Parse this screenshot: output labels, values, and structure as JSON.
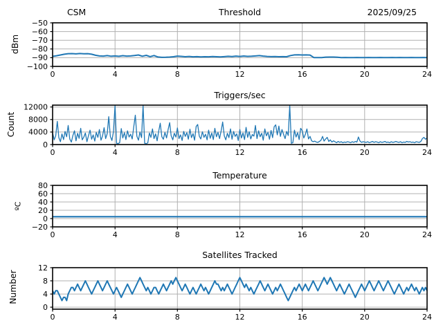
{
  "style": {
    "background": "#ffffff",
    "line_color": "#1f77b4",
    "grid_color": "#b0b0b0",
    "spine_color": "#000000"
  },
  "chart_data": [
    {
      "type": "line",
      "title": "Threshold",
      "title_left": "CSM",
      "title_right": "2025/09/25",
      "ylabel": "dBm",
      "xlim": [
        0,
        24
      ],
      "ylim": [
        -100,
        -50
      ],
      "xticks": [
        0,
        4,
        8,
        12,
        16,
        20,
        24
      ],
      "yticks": [
        -100,
        -90,
        -80,
        -70,
        -60,
        -50
      ],
      "grid": true,
      "x_start": 0,
      "x_step": 0.25,
      "values": [
        -88.5,
        -87.8,
        -86.9,
        -86.0,
        -85.4,
        -85.3,
        -85.6,
        -85.2,
        -85.5,
        -85.4,
        -86.0,
        -87.2,
        -88.0,
        -88.2,
        -87.6,
        -88.3,
        -88.0,
        -88.4,
        -87.7,
        -88.2,
        -88.0,
        -87.5,
        -86.9,
        -88.3,
        -87.3,
        -88.8,
        -87.5,
        -89.2,
        -89.6,
        -89.5,
        -89.3,
        -88.9,
        -88.2,
        -88.5,
        -88.9,
        -88.6,
        -89.0,
        -88.8,
        -89.1,
        -88.9,
        -89.0,
        -88.7,
        -88.9,
        -89.1,
        -88.8,
        -88.4,
        -88.7,
        -88.2,
        -88.6,
        -88.1,
        -88.5,
        -88.3,
        -88.0,
        -87.6,
        -88.2,
        -88.6,
        -88.8,
        -88.7,
        -88.9,
        -88.8,
        -88.9,
        -87.5,
        -86.8,
        -86.7,
        -86.9,
        -86.8,
        -87.0,
        -89.9,
        -89.9,
        -89.9,
        -89.4,
        -89.3,
        -89.3,
        -89.5,
        -89.9,
        -89.8,
        -89.9,
        -89.9,
        -89.8,
        -89.9,
        -89.9,
        -89.8,
        -89.9,
        -89.9,
        -89.8,
        -89.9,
        -89.9,
        -89.8,
        -89.9,
        -89.8,
        -89.9,
        -89.9,
        -89.8,
        -89.9,
        -89.9,
        -89.8,
        -89.9
      ]
    },
    {
      "type": "line",
      "title": "Triggers/sec",
      "ylabel": "Count",
      "xlim": [
        0,
        24
      ],
      "ylim": [
        0,
        12600
      ],
      "xticks": [
        0,
        4,
        8,
        12,
        16,
        20,
        24
      ],
      "yticks": [
        0,
        4000,
        8000,
        12000
      ],
      "grid": true,
      "x_start": 0,
      "x_step": 0.1,
      "values": [
        3800,
        1500,
        2800,
        7400,
        2200,
        900,
        3400,
        1600,
        4200,
        2500,
        6100,
        1800,
        800,
        2900,
        4400,
        1200,
        3600,
        2000,
        5200,
        1500,
        2400,
        3700,
        900,
        2800,
        4600,
        1700,
        3100,
        1100,
        3900,
        2300,
        4800,
        1400,
        2700,
        5400,
        1900,
        3500,
        8900,
        2600,
        1300,
        4100,
        12500,
        400,
        300,
        600,
        5100,
        2100,
        3800,
        1600,
        4400,
        2400,
        3300,
        1800,
        5600,
        9400,
        2700,
        1400,
        4000,
        2200,
        12500,
        400,
        300,
        500,
        3700,
        2300,
        5000,
        1900,
        3400,
        1200,
        4300,
        6800,
        2500,
        1700,
        3900,
        2100,
        4700,
        7000,
        2800,
        1500,
        3600,
        2400,
        5300,
        1900,
        3100,
        1300,
        4200,
        2600,
        3800,
        1700,
        4900,
        2200,
        3500,
        1400,
        5800,
        6400,
        2700,
        1800,
        4100,
        2300,
        3300,
        1500,
        4600,
        2000,
        3700,
        1600,
        5200,
        2500,
        3900,
        1900,
        4400,
        7200,
        2800,
        1500,
        3600,
        2200,
        5000,
        1700,
        4200,
        2600,
        3400,
        1300,
        4800,
        2100,
        3700,
        1600,
        5500,
        2300,
        4100,
        1800,
        3200,
        2700,
        6100,
        1900,
        4400,
        2500,
        3600,
        1400,
        5000,
        2800,
        3900,
        1700,
        4500,
        2200,
        5700,
        6300,
        3100,
        5900,
        2600,
        4800,
        3300,
        1900,
        4200,
        2900,
        12500,
        400,
        600,
        4600,
        2400,
        3800,
        1600,
        5200,
        4400,
        2100,
        3300,
        5000,
        1800,
        2600,
        1200,
        900,
        1100,
        800,
        700,
        1000,
        1400,
        2600,
        1100,
        1800,
        2300,
        1000,
        1500,
        800,
        1200,
        900,
        600,
        1000,
        700,
        900,
        600,
        800,
        700,
        900,
        800,
        600,
        900,
        700,
        1000,
        800,
        2400,
        1100,
        700,
        900,
        800,
        700,
        900,
        600,
        800,
        1000,
        700,
        900,
        800,
        600,
        900,
        700,
        800,
        1000,
        700,
        800,
        600,
        900,
        700,
        800,
        1000,
        800,
        700,
        900,
        600,
        800,
        700,
        1000,
        800,
        900,
        700,
        800,
        600,
        900,
        800,
        700,
        1000,
        1900,
        2300,
        1700,
        2100
      ]
    },
    {
      "type": "line",
      "title": "Temperature",
      "ylabel": "ºC",
      "xlim": [
        0,
        24
      ],
      "ylim": [
        -20,
        80
      ],
      "xticks": [
        0,
        4,
        8,
        12,
        16,
        20,
        24
      ],
      "yticks": [
        -20,
        0,
        20,
        40,
        60,
        80
      ],
      "grid": true,
      "x_start": 0,
      "x_step": 24,
      "values": [
        4.5,
        4.5
      ]
    },
    {
      "type": "line",
      "title": "Satellites Tracked",
      "ylabel": "Number",
      "xlim": [
        0,
        24
      ],
      "ylim": [
        -0.6,
        12
      ],
      "xticks": [
        0,
        4,
        8,
        12,
        16,
        20,
        24
      ],
      "yticks": [
        0,
        4,
        8,
        12
      ],
      "grid": true,
      "x_start": 0,
      "x_step": 0.1,
      "values": [
        5,
        4,
        5,
        5,
        4,
        3,
        2,
        3,
        3,
        2,
        4,
        5,
        6,
        6,
        5,
        6,
        7,
        6,
        5,
        6,
        7,
        8,
        7,
        6,
        5,
        4,
        5,
        6,
        7,
        8,
        7,
        6,
        5,
        6,
        7,
        8,
        7,
        6,
        5,
        4,
        5,
        6,
        5,
        4,
        3,
        4,
        5,
        6,
        7,
        6,
        5,
        4,
        5,
        6,
        7,
        8,
        9,
        8,
        7,
        6,
        5,
        6,
        5,
        4,
        5,
        6,
        6,
        5,
        4,
        5,
        6,
        7,
        6,
        5,
        6,
        7,
        8,
        7,
        8,
        9,
        8,
        7,
        6,
        5,
        6,
        7,
        6,
        5,
        4,
        5,
        6,
        5,
        4,
        5,
        6,
        7,
        6,
        5,
        6,
        5,
        4,
        5,
        6,
        7,
        8,
        7,
        7,
        6,
        5,
        6,
        5,
        6,
        7,
        6,
        5,
        4,
        5,
        6,
        7,
        8,
        9,
        8,
        7,
        6,
        7,
        6,
        5,
        6,
        5,
        4,
        5,
        6,
        7,
        8,
        7,
        6,
        5,
        6,
        7,
        6,
        5,
        4,
        5,
        6,
        5,
        6,
        7,
        6,
        5,
        4,
        3,
        2,
        3,
        4,
        5,
        6,
        5,
        6,
        7,
        6,
        5,
        6,
        7,
        6,
        5,
        6,
        7,
        8,
        7,
        6,
        5,
        6,
        7,
        8,
        9,
        8,
        7,
        8,
        9,
        8,
        7,
        6,
        5,
        6,
        7,
        6,
        5,
        4,
        5,
        6,
        7,
        6,
        5,
        4,
        3,
        4,
        5,
        6,
        7,
        6,
        5,
        6,
        7,
        8,
        7,
        6,
        5,
        6,
        7,
        8,
        7,
        6,
        5,
        6,
        7,
        8,
        7,
        6,
        5,
        4,
        5,
        6,
        7,
        6,
        5,
        4,
        5,
        6,
        5,
        6,
        7,
        6,
        5,
        6,
        5,
        4,
        5,
        6,
        5,
        6,
        5
      ]
    }
  ]
}
